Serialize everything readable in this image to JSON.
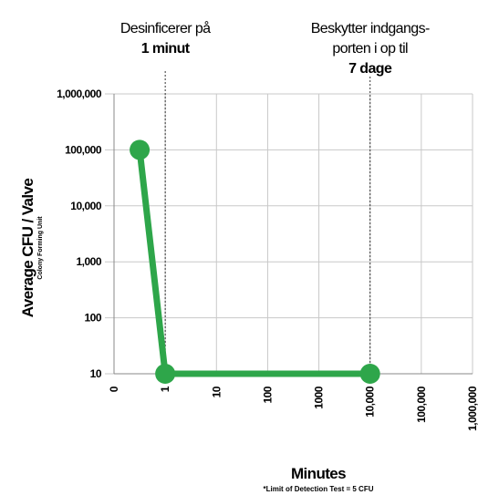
{
  "chart_data": {
    "type": "line",
    "xlabel": "Minutes",
    "ylabel": "Average CFU / Valve",
    "ylabel_note": "Colony Forming Unit",
    "footnote": "*Limit of Detection Test = 5 CFU",
    "x_scale": "log",
    "y_scale": "log",
    "x_tick_labels": [
      "0",
      "1",
      "10",
      "100",
      "1000",
      "10,000",
      "100,000",
      "1,000,000"
    ],
    "y_tick_labels": [
      "10",
      "100",
      "1,000",
      "10,000",
      "100,000",
      "1,000,000"
    ],
    "ylim": [
      10,
      1000000
    ],
    "grid": true,
    "series": [
      {
        "color": "#2ea64a",
        "points": [
          {
            "x": 0.5,
            "y": 100000
          },
          {
            "x": 1,
            "y": 10
          },
          {
            "x": 10000,
            "y": 10
          }
        ]
      }
    ],
    "annotations": [
      {
        "x": 1,
        "lines": [
          "Desinficerer på"
        ],
        "bold_lines": [
          "1 minut"
        ]
      },
      {
        "x": 10000,
        "lines": [
          "Beskytter indgangs-",
          "porten i op til"
        ],
        "bold_lines": [
          "7 dage"
        ]
      }
    ]
  }
}
